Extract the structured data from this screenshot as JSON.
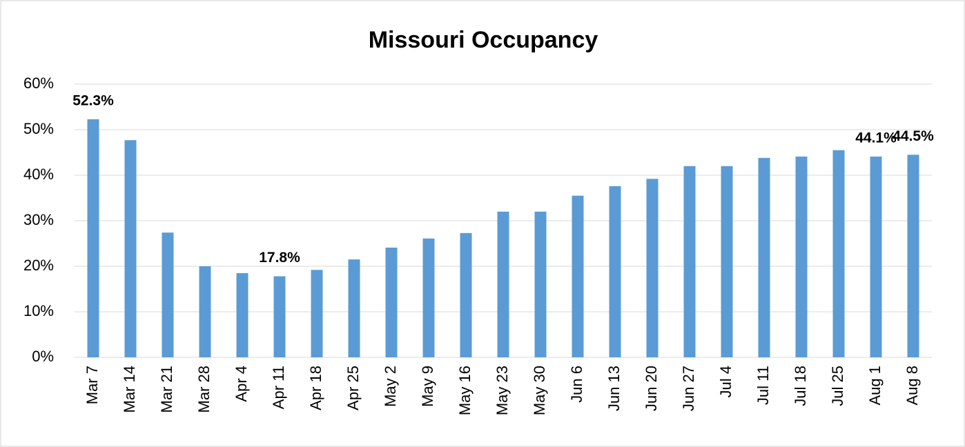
{
  "chart_data": {
    "type": "bar",
    "title": "Missouri Occupancy",
    "categories": [
      "Mar 7",
      "Mar 14",
      "Mar 21",
      "Mar 28",
      "Apr 4",
      "Apr 11",
      "Apr 18",
      "Apr 25",
      "May 2",
      "May 9",
      "May 16",
      "May 23",
      "May 30",
      "Jun 6",
      "Jun 13",
      "Jun 20",
      "Jun 27",
      "Jul 4",
      "Jul 11",
      "Jul 18",
      "Jul 25",
      "Aug 1",
      "Aug 8"
    ],
    "values": [
      52.3,
      47.7,
      27.4,
      20.0,
      18.5,
      17.8,
      19.2,
      21.5,
      24.1,
      26.1,
      27.3,
      32.0,
      32.0,
      35.5,
      37.6,
      39.2,
      42.0,
      42.0,
      43.8,
      44.1,
      45.5,
      44.1,
      44.5
    ],
    "value_labels": [
      "52.3%",
      null,
      null,
      null,
      null,
      "17.8%",
      null,
      null,
      null,
      null,
      null,
      null,
      null,
      null,
      null,
      null,
      null,
      null,
      null,
      null,
      null,
      "44.1%",
      "44.5%"
    ],
    "color": "#5b9bd5",
    "ylim": [
      0,
      60
    ],
    "yticks": [
      {
        "value": 0,
        "label": "0%"
      },
      {
        "value": 10,
        "label": "10%"
      },
      {
        "value": 20,
        "label": "20%"
      },
      {
        "value": 30,
        "label": "30%"
      },
      {
        "value": 40,
        "label": "40%"
      },
      {
        "value": 50,
        "label": "50%"
      },
      {
        "value": 60,
        "label": "60%"
      }
    ],
    "grid": true
  }
}
